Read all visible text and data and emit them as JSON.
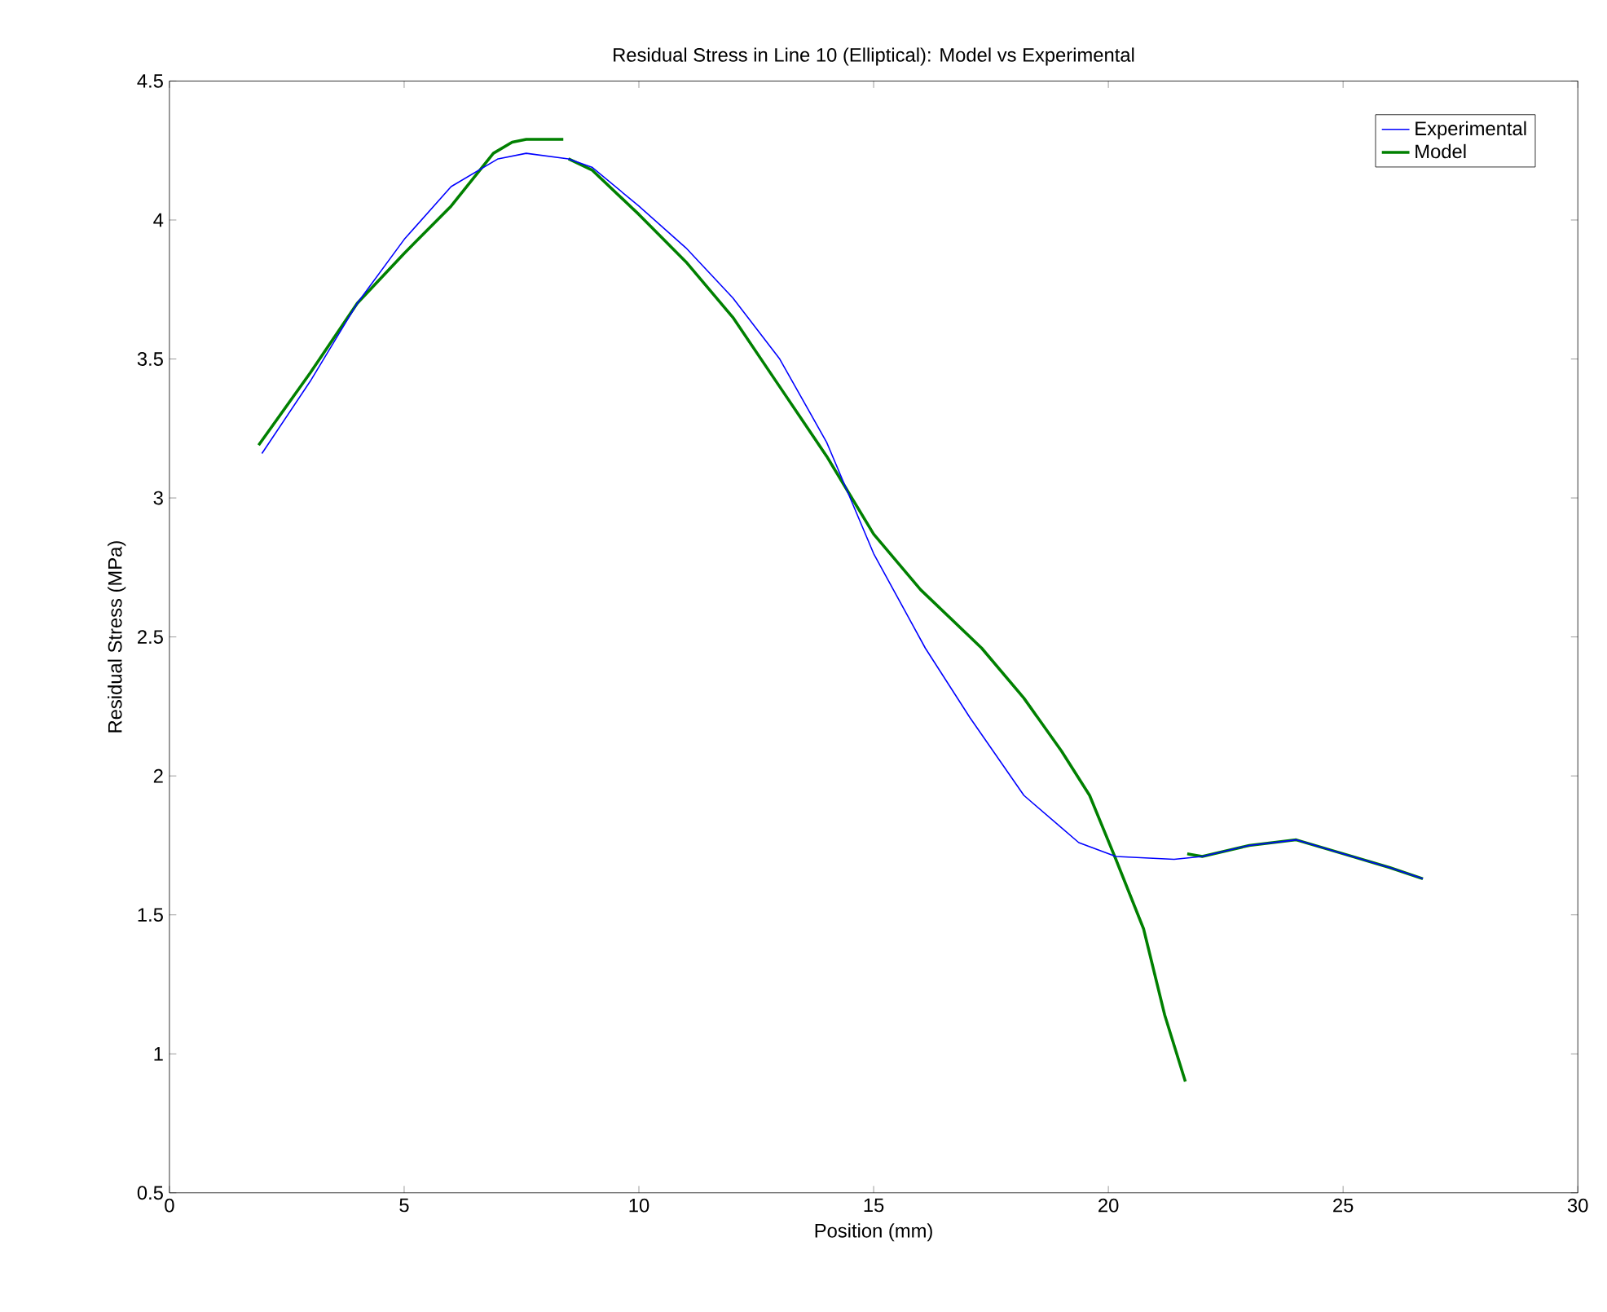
{
  "chart_data": {
    "type": "line",
    "title": "Residual Stress in Line 10 (Elliptical): Model vs Experimental",
    "xlabel": "Position (mm)",
    "ylabel": "Residual Stress (MPa)",
    "xlim": [
      0,
      30
    ],
    "ylim": [
      0.5,
      4.5
    ],
    "xticks": [
      0,
      5,
      10,
      15,
      20,
      25,
      30
    ],
    "yticks": [
      0.5,
      1,
      1.5,
      2,
      2.5,
      3,
      3.5,
      4,
      4.5
    ],
    "grid": false,
    "legend": "top right",
    "line_style": "solid",
    "marker": "none",
    "series": [
      {
        "name": "Experimental",
        "color": "#0000ff",
        "x": [
          1.97,
          3,
          4,
          5,
          6,
          7,
          7.6,
          8.5,
          9,
          10,
          11,
          12,
          13,
          14,
          15,
          16.1,
          17.05,
          18.2,
          19.37,
          20.16,
          21.4,
          22,
          23,
          24,
          25,
          26,
          26.7
        ],
        "values": [
          3.16,
          3.42,
          3.7,
          3.93,
          4.12,
          4.22,
          4.24,
          4.22,
          4.19,
          4.05,
          3.9,
          3.72,
          3.5,
          3.2,
          2.8,
          2.46,
          2.21,
          1.93,
          1.76,
          1.71,
          1.7,
          1.71,
          1.75,
          1.77,
          1.72,
          1.67,
          1.63
        ]
      },
      {
        "name": "Model",
        "color": "#008000",
        "x": [
          1.9,
          3,
          4,
          5,
          6,
          6.9,
          7.3,
          7.6,
          8.39,
          8.45,
          8.5,
          9,
          10,
          11,
          12,
          13,
          14,
          15,
          16,
          17.3,
          18.2,
          19,
          19.6,
          20.16,
          20.75,
          21.2,
          21.64,
          21.66,
          21.68,
          22,
          23,
          24,
          25,
          26,
          26.7
        ],
        "values": [
          3.19,
          3.45,
          3.7,
          3.88,
          4.05,
          4.24,
          4.28,
          4.29,
          4.29,
          null,
          4.22,
          4.18,
          4.02,
          3.85,
          3.65,
          3.4,
          3.15,
          2.87,
          2.67,
          2.46,
          2.28,
          2.09,
          1.93,
          1.7,
          1.45,
          1.14,
          0.9,
          null,
          1.72,
          1.71,
          1.75,
          1.77,
          1.72,
          1.67,
          1.63
        ]
      }
    ]
  }
}
